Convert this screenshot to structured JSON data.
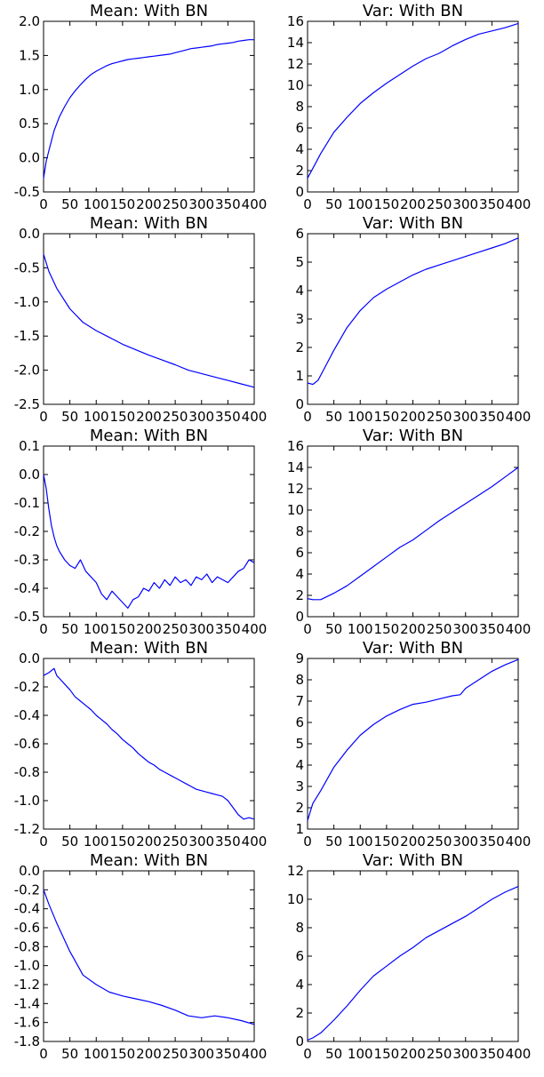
{
  "chart_data": [
    {
      "type": "line",
      "title": "Mean: With BN",
      "xlim": [
        0,
        400
      ],
      "ylim": [
        -0.5,
        2.0
      ],
      "xticks": [
        "0",
        "50",
        "100",
        "150",
        "200",
        "250",
        "300",
        "350",
        "400"
      ],
      "yticks": [
        "-0.5",
        "0.0",
        "0.5",
        "1.0",
        "1.5",
        "2.0"
      ],
      "series": [
        {
          "x": [
            0,
            5,
            10,
            20,
            30,
            40,
            50,
            60,
            70,
            80,
            90,
            100,
            110,
            120,
            130,
            140,
            150,
            160,
            170,
            180,
            190,
            200,
            210,
            220,
            230,
            240,
            250,
            260,
            270,
            280,
            290,
            300,
            310,
            320,
            330,
            340,
            350,
            360,
            370,
            380,
            390,
            400
          ],
          "y": [
            -0.3,
            -0.05,
            0.1,
            0.4,
            0.6,
            0.75,
            0.88,
            0.98,
            1.07,
            1.15,
            1.22,
            1.27,
            1.31,
            1.35,
            1.38,
            1.4,
            1.42,
            1.44,
            1.45,
            1.46,
            1.47,
            1.48,
            1.49,
            1.5,
            1.51,
            1.52,
            1.54,
            1.56,
            1.58,
            1.6,
            1.61,
            1.62,
            1.63,
            1.64,
            1.66,
            1.67,
            1.68,
            1.69,
            1.71,
            1.72,
            1.73,
            1.73
          ]
        }
      ],
      "color": "#0000ff"
    },
    {
      "type": "line",
      "title": "Var: With BN",
      "xlim": [
        0,
        400
      ],
      "ylim": [
        0,
        16
      ],
      "xticks": [
        "0",
        "50",
        "100",
        "150",
        "200",
        "250",
        "300",
        "350",
        "400"
      ],
      "yticks": [
        "0",
        "2",
        "4",
        "6",
        "8",
        "10",
        "12",
        "14",
        "16"
      ],
      "series": [
        {
          "x": [
            0,
            10,
            25,
            50,
            75,
            100,
            125,
            150,
            175,
            200,
            225,
            250,
            275,
            300,
            325,
            350,
            375,
            400
          ],
          "y": [
            1.3,
            2.2,
            3.6,
            5.6,
            7.0,
            8.3,
            9.3,
            10.2,
            11.0,
            11.8,
            12.5,
            13.0,
            13.7,
            14.3,
            14.8,
            15.1,
            15.4,
            15.8
          ]
        }
      ],
      "color": "#0000ff"
    },
    {
      "type": "line",
      "title": "Mean: With BN",
      "xlim": [
        0,
        400
      ],
      "ylim": [
        -2.5,
        0.0
      ],
      "xticks": [
        "0",
        "50",
        "100",
        "150",
        "200",
        "250",
        "300",
        "350",
        "400"
      ],
      "yticks": [
        "-2.5",
        "-2.0",
        "-1.5",
        "-1.0",
        "-0.5",
        "0.0"
      ],
      "series": [
        {
          "x": [
            0,
            10,
            25,
            50,
            75,
            100,
            125,
            150,
            175,
            200,
            225,
            250,
            275,
            300,
            325,
            350,
            375,
            400
          ],
          "y": [
            -0.3,
            -0.55,
            -0.8,
            -1.1,
            -1.3,
            -1.42,
            -1.52,
            -1.62,
            -1.7,
            -1.78,
            -1.85,
            -1.92,
            -2.0,
            -2.05,
            -2.1,
            -2.15,
            -2.2,
            -2.25
          ]
        }
      ],
      "color": "#0000ff"
    },
    {
      "type": "line",
      "title": "Var: With BN",
      "xlim": [
        0,
        400
      ],
      "ylim": [
        0,
        6
      ],
      "xticks": [
        "0",
        "50",
        "100",
        "150",
        "200",
        "250",
        "300",
        "350",
        "400"
      ],
      "yticks": [
        "0",
        "1",
        "2",
        "3",
        "4",
        "5",
        "6"
      ],
      "series": [
        {
          "x": [
            0,
            10,
            20,
            30,
            50,
            75,
            100,
            125,
            150,
            175,
            200,
            225,
            250,
            275,
            300,
            325,
            350,
            375,
            400
          ],
          "y": [
            0.75,
            0.7,
            0.85,
            1.2,
            1.9,
            2.7,
            3.3,
            3.75,
            4.05,
            4.3,
            4.55,
            4.75,
            4.9,
            5.05,
            5.2,
            5.35,
            5.5,
            5.65,
            5.85
          ]
        }
      ],
      "color": "#0000ff"
    },
    {
      "type": "line",
      "title": "Mean: With BN",
      "xlim": [
        0,
        400
      ],
      "ylim": [
        -0.5,
        0.1
      ],
      "xticks": [
        "0",
        "50",
        "100",
        "150",
        "200",
        "250",
        "300",
        "350",
        "400"
      ],
      "yticks": [
        "-0.5",
        "-0.4",
        "-0.3",
        "-0.2",
        "-0.1",
        "0.0",
        "0.1"
      ],
      "series": [
        {
          "x": [
            0,
            5,
            10,
            15,
            20,
            25,
            30,
            40,
            50,
            60,
            70,
            80,
            90,
            100,
            110,
            120,
            130,
            140,
            150,
            160,
            170,
            180,
            190,
            200,
            210,
            220,
            230,
            240,
            250,
            260,
            270,
            280,
            290,
            300,
            310,
            320,
            330,
            340,
            350,
            360,
            370,
            380,
            390,
            400
          ],
          "y": [
            0.0,
            -0.05,
            -0.12,
            -0.18,
            -0.22,
            -0.25,
            -0.27,
            -0.3,
            -0.32,
            -0.33,
            -0.3,
            -0.34,
            -0.36,
            -0.38,
            -0.42,
            -0.44,
            -0.41,
            -0.43,
            -0.45,
            -0.47,
            -0.44,
            -0.43,
            -0.4,
            -0.41,
            -0.38,
            -0.4,
            -0.37,
            -0.39,
            -0.36,
            -0.38,
            -0.37,
            -0.39,
            -0.36,
            -0.37,
            -0.35,
            -0.38,
            -0.36,
            -0.37,
            -0.38,
            -0.36,
            -0.34,
            -0.33,
            -0.3,
            -0.31
          ]
        }
      ],
      "color": "#0000ff"
    },
    {
      "type": "line",
      "title": "Var: With BN",
      "xlim": [
        0,
        400
      ],
      "ylim": [
        0,
        16
      ],
      "xticks": [
        "0",
        "50",
        "100",
        "150",
        "200",
        "250",
        "300",
        "350",
        "400"
      ],
      "yticks": [
        "0",
        "2",
        "4",
        "6",
        "8",
        "10",
        "12",
        "14",
        "16"
      ],
      "series": [
        {
          "x": [
            0,
            10,
            25,
            50,
            75,
            100,
            125,
            150,
            175,
            200,
            225,
            250,
            275,
            300,
            325,
            350,
            375,
            400
          ],
          "y": [
            1.7,
            1.6,
            1.6,
            2.2,
            2.9,
            3.8,
            4.7,
            5.6,
            6.5,
            7.2,
            8.1,
            9.0,
            9.8,
            10.6,
            11.4,
            12.2,
            13.1,
            14.0
          ]
        }
      ],
      "color": "#0000ff"
    },
    {
      "type": "line",
      "title": "Mean: With BN",
      "xlim": [
        0,
        400
      ],
      "ylim": [
        -1.2,
        0.0
      ],
      "xticks": [
        "0",
        "50",
        "100",
        "150",
        "200",
        "250",
        "300",
        "350",
        "400"
      ],
      "yticks": [
        "-1.2",
        "-1.0",
        "-0.8",
        "-0.6",
        "-0.4",
        "-0.2",
        "0.0"
      ],
      "series": [
        {
          "x": [
            0,
            10,
            20,
            25,
            30,
            40,
            50,
            60,
            70,
            80,
            90,
            100,
            110,
            120,
            130,
            140,
            150,
            160,
            170,
            180,
            190,
            200,
            210,
            220,
            230,
            240,
            250,
            260,
            270,
            280,
            290,
            300,
            310,
            320,
            330,
            340,
            350,
            360,
            370,
            380,
            390,
            400
          ],
          "y": [
            -0.12,
            -0.1,
            -0.07,
            -0.12,
            -0.14,
            -0.18,
            -0.22,
            -0.27,
            -0.3,
            -0.33,
            -0.36,
            -0.4,
            -0.43,
            -0.46,
            -0.5,
            -0.53,
            -0.57,
            -0.6,
            -0.63,
            -0.67,
            -0.7,
            -0.73,
            -0.75,
            -0.78,
            -0.8,
            -0.82,
            -0.84,
            -0.86,
            -0.88,
            -0.9,
            -0.92,
            -0.93,
            -0.94,
            -0.95,
            -0.96,
            -0.97,
            -1.0,
            -1.05,
            -1.1,
            -1.13,
            -1.12,
            -1.13
          ]
        }
      ],
      "color": "#0000ff"
    },
    {
      "type": "line",
      "title": "Var: With BN",
      "xlim": [
        0,
        400
      ],
      "ylim": [
        1,
        9
      ],
      "xticks": [
        "0",
        "50",
        "100",
        "150",
        "200",
        "250",
        "300",
        "350",
        "400"
      ],
      "yticks": [
        "1",
        "2",
        "3",
        "4",
        "5",
        "6",
        "7",
        "8",
        "9"
      ],
      "series": [
        {
          "x": [
            0,
            10,
            25,
            50,
            75,
            100,
            125,
            150,
            175,
            200,
            225,
            250,
            275,
            290,
            300,
            325,
            350,
            375,
            400
          ],
          "y": [
            1.4,
            2.2,
            2.8,
            3.9,
            4.7,
            5.4,
            5.9,
            6.3,
            6.6,
            6.85,
            6.95,
            7.1,
            7.25,
            7.3,
            7.6,
            8.0,
            8.4,
            8.7,
            8.95
          ]
        }
      ],
      "color": "#0000ff"
    },
    {
      "type": "line",
      "title": "Mean: With BN",
      "xlim": [
        0,
        400
      ],
      "ylim": [
        -1.8,
        0.0
      ],
      "xticks": [
        "0",
        "50",
        "100",
        "150",
        "200",
        "250",
        "300",
        "350",
        "400"
      ],
      "yticks": [
        "-1.8",
        "-1.6",
        "-1.4",
        "-1.2",
        "-1.0",
        "-0.8",
        "-0.6",
        "-0.4",
        "-0.2",
        "0.0"
      ],
      "series": [
        {
          "x": [
            0,
            10,
            25,
            50,
            75,
            100,
            125,
            150,
            175,
            200,
            225,
            250,
            275,
            300,
            325,
            350,
            375,
            400
          ],
          "y": [
            -0.2,
            -0.35,
            -0.55,
            -0.85,
            -1.1,
            -1.2,
            -1.28,
            -1.32,
            -1.35,
            -1.38,
            -1.42,
            -1.47,
            -1.53,
            -1.55,
            -1.53,
            -1.55,
            -1.58,
            -1.62
          ]
        }
      ],
      "color": "#0000ff"
    },
    {
      "type": "line",
      "title": "Var: With BN",
      "xlim": [
        0,
        400
      ],
      "ylim": [
        0,
        12
      ],
      "xticks": [
        "0",
        "50",
        "100",
        "150",
        "200",
        "250",
        "300",
        "350",
        "400"
      ],
      "yticks": [
        "0",
        "2",
        "4",
        "6",
        "8",
        "10",
        "12"
      ],
      "series": [
        {
          "x": [
            0,
            10,
            25,
            50,
            75,
            100,
            125,
            150,
            175,
            200,
            225,
            250,
            275,
            300,
            325,
            350,
            375,
            400
          ],
          "y": [
            0.1,
            0.25,
            0.6,
            1.5,
            2.5,
            3.6,
            4.6,
            5.3,
            6.0,
            6.6,
            7.3,
            7.8,
            8.3,
            8.8,
            9.4,
            10.0,
            10.5,
            10.9
          ]
        }
      ],
      "color": "#0000ff"
    }
  ]
}
